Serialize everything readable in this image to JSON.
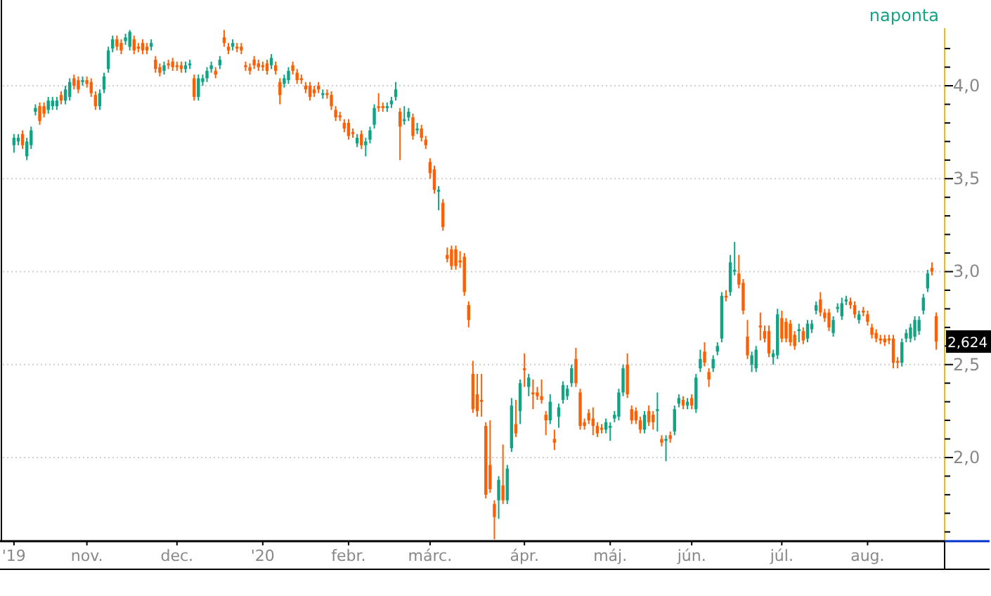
{
  "chart_data": {
    "type": "candlestick",
    "subtitle": "naponta",
    "categories": [
      "'19",
      null,
      null,
      null,
      null,
      null,
      null,
      null,
      null,
      null,
      null,
      null,
      null,
      null,
      null,
      null,
      null,
      "nov.",
      null,
      null,
      null,
      null,
      null,
      null,
      null,
      null,
      null,
      null,
      null,
      null,
      null,
      null,
      null,
      null,
      null,
      null,
      null,
      null,
      "dec.",
      null,
      null,
      null,
      null,
      null,
      null,
      null,
      null,
      null,
      null,
      null,
      null,
      null,
      null,
      null,
      null,
      null,
      null,
      null,
      "'20",
      null,
      null,
      null,
      null,
      null,
      null,
      null,
      null,
      null,
      null,
      null,
      null,
      null,
      null,
      null,
      null,
      null,
      null,
      null,
      "febr.",
      null,
      null,
      null,
      null,
      null,
      null,
      null,
      null,
      null,
      null,
      null,
      null,
      null,
      null,
      null,
      null,
      null,
      null,
      "márc.",
      null,
      null,
      null,
      null,
      null,
      null,
      null,
      null,
      null,
      null,
      null,
      null,
      null,
      null,
      null,
      null,
      null,
      null,
      null,
      null,
      null,
      "ápr.",
      null,
      null,
      null,
      null,
      null,
      null,
      null,
      null,
      null,
      null,
      null,
      null,
      null,
      null,
      null,
      null,
      null,
      null,
      null,
      "máj.",
      null,
      null,
      null,
      null,
      null,
      null,
      null,
      null,
      null,
      null,
      null,
      null,
      null,
      null,
      null,
      null,
      null,
      null,
      "jún.",
      null,
      null,
      null,
      null,
      null,
      null,
      null,
      null,
      null,
      null,
      null,
      null,
      null,
      null,
      null,
      null,
      null,
      null,
      null,
      null,
      "júl.",
      null,
      null,
      null,
      null,
      null,
      null,
      null,
      null,
      null,
      null,
      null,
      null,
      null,
      null,
      null,
      null,
      null,
      null,
      null,
      "aug.",
      null,
      null,
      null,
      null,
      null,
      null,
      null,
      null,
      null,
      null,
      null,
      null,
      null,
      null,
      null,
      null
    ],
    "ohlc": [
      [
        3.68,
        3.74,
        3.64,
        3.72
      ],
      [
        3.7,
        3.74,
        3.68,
        3.72
      ],
      [
        3.74,
        3.76,
        3.66,
        3.68
      ],
      [
        3.62,
        3.72,
        3.6,
        3.7
      ],
      [
        3.68,
        3.78,
        3.66,
        3.76
      ],
      [
        3.86,
        3.9,
        3.84,
        3.88
      ],
      [
        3.89,
        3.91,
        3.79,
        3.81
      ],
      [
        3.89,
        3.91,
        3.83,
        3.85
      ],
      [
        3.87,
        3.94,
        3.85,
        3.92
      ],
      [
        3.89,
        3.94,
        3.87,
        3.92
      ],
      [
        3.89,
        3.94,
        3.87,
        3.92
      ],
      [
        3.95,
        3.97,
        3.9,
        3.92
      ],
      [
        3.92,
        4.0,
        3.9,
        3.98
      ],
      [
        3.94,
        4.04,
        3.92,
        4.02
      ],
      [
        4.04,
        4.06,
        3.98,
        4.0
      ],
      [
        4.03,
        4.05,
        3.96,
        3.98
      ],
      [
        4.02,
        4.05,
        4.0,
        4.03
      ],
      [
        4.03,
        4.05,
        3.99,
        4.01
      ],
      [
        4.02,
        4.04,
        3.94,
        3.96
      ],
      [
        3.95,
        3.97,
        3.87,
        3.89
      ],
      [
        3.89,
        3.98,
        3.87,
        3.96
      ],
      [
        3.98,
        4.07,
        3.96,
        4.05
      ],
      [
        4.09,
        4.21,
        4.07,
        4.19
      ],
      [
        4.2,
        4.27,
        4.18,
        4.25
      ],
      [
        4.25,
        4.27,
        4.19,
        4.21
      ],
      [
        4.23,
        4.25,
        4.17,
        4.19
      ],
      [
        4.24,
        4.28,
        4.22,
        4.26
      ],
      [
        4.21,
        4.3,
        4.19,
        4.29
      ],
      [
        4.25,
        4.27,
        4.17,
        4.19
      ],
      [
        4.21,
        4.23,
        4.18,
        4.2
      ],
      [
        4.23,
        4.25,
        4.17,
        4.19
      ],
      [
        4.21,
        4.23,
        4.17,
        4.19
      ],
      [
        4.21,
        4.25,
        4.19,
        4.23
      ],
      [
        4.14,
        4.16,
        4.07,
        4.09
      ],
      [
        4.1,
        4.12,
        4.05,
        4.07
      ],
      [
        4.08,
        4.13,
        4.06,
        4.11
      ],
      [
        4.12,
        4.14,
        4.09,
        4.11
      ],
      [
        4.13,
        4.15,
        4.08,
        4.1
      ],
      [
        4.11,
        4.13,
        4.08,
        4.1
      ],
      [
        4.11,
        4.13,
        4.07,
        4.09
      ],
      [
        4.09,
        4.13,
        4.07,
        4.11
      ],
      [
        4.11,
        4.14,
        4.09,
        4.12
      ],
      [
        4.04,
        4.06,
        3.92,
        3.94
      ],
      [
        3.94,
        4.06,
        3.92,
        4.04
      ],
      [
        4.02,
        4.06,
        4.0,
        4.04
      ],
      [
        4.04,
        4.1,
        4.02,
        4.08
      ],
      [
        4.09,
        4.13,
        4.07,
        4.11
      ],
      [
        4.08,
        4.1,
        4.04,
        4.06
      ],
      [
        4.11,
        4.16,
        4.09,
        4.14
      ],
      [
        4.26,
        4.3,
        4.21,
        4.23
      ],
      [
        4.21,
        4.23,
        4.17,
        4.19
      ],
      [
        4.21,
        4.25,
        4.19,
        4.23
      ],
      [
        4.21,
        4.23,
        4.18,
        4.2
      ],
      [
        4.21,
        4.23,
        4.17,
        4.19
      ],
      [
        4.11,
        4.13,
        4.08,
        4.1
      ],
      [
        4.1,
        4.12,
        4.06,
        4.08
      ],
      [
        4.14,
        4.16,
        4.09,
        4.11
      ],
      [
        4.12,
        4.14,
        4.08,
        4.1
      ],
      [
        4.11,
        4.13,
        4.08,
        4.1
      ],
      [
        4.12,
        4.14,
        4.06,
        4.08
      ],
      [
        4.11,
        4.17,
        4.09,
        4.15
      ],
      [
        4.11,
        4.13,
        4.06,
        4.08
      ],
      [
        4.02,
        4.04,
        3.9,
        3.95
      ],
      [
        4.01,
        4.06,
        3.99,
        4.04
      ],
      [
        4.03,
        4.1,
        4.01,
        4.08
      ],
      [
        4.11,
        4.13,
        4.06,
        4.08
      ],
      [
        4.07,
        4.09,
        4.01,
        4.03
      ],
      [
        4.04,
        4.06,
        4.01,
        4.03
      ],
      [
        4.0,
        4.02,
        3.96,
        3.98
      ],
      [
        4.0,
        4.02,
        3.92,
        3.94
      ],
      [
        3.98,
        4.0,
        3.94,
        3.96
      ],
      [
        4.0,
        4.02,
        3.96,
        3.98
      ],
      [
        3.95,
        3.98,
        3.93,
        3.96
      ],
      [
        3.96,
        3.98,
        3.93,
        3.95
      ],
      [
        3.95,
        3.97,
        3.87,
        3.89
      ],
      [
        3.87,
        3.89,
        3.81,
        3.83
      ],
      [
        3.84,
        3.86,
        3.81,
        3.83
      ],
      [
        3.8,
        3.82,
        3.75,
        3.77
      ],
      [
        3.8,
        3.82,
        3.71,
        3.73
      ],
      [
        3.75,
        3.77,
        3.72,
        3.74
      ],
      [
        3.69,
        3.74,
        3.67,
        3.72
      ],
      [
        3.74,
        3.76,
        3.66,
        3.68
      ],
      [
        3.68,
        3.72,
        3.62,
        3.7
      ],
      [
        3.71,
        3.78,
        3.69,
        3.76
      ],
      [
        3.79,
        3.9,
        3.77,
        3.88
      ],
      [
        3.89,
        3.96,
        3.86,
        3.88
      ],
      [
        3.89,
        3.91,
        3.86,
        3.88
      ],
      [
        3.88,
        3.91,
        3.86,
        3.89
      ],
      [
        3.9,
        3.94,
        3.88,
        3.92
      ],
      [
        3.94,
        4.02,
        3.92,
        3.98
      ],
      [
        3.86,
        3.88,
        3.6,
        3.78
      ],
      [
        3.81,
        3.89,
        3.79,
        3.82
      ],
      [
        3.83,
        3.88,
        3.81,
        3.86
      ],
      [
        3.83,
        3.85,
        3.71,
        3.73
      ],
      [
        3.76,
        3.8,
        3.74,
        3.77
      ],
      [
        3.77,
        3.79,
        3.7,
        3.72
      ],
      [
        3.71,
        3.73,
        3.66,
        3.68
      ],
      [
        3.59,
        3.61,
        3.5,
        3.53
      ],
      [
        3.55,
        3.57,
        3.42,
        3.44
      ],
      [
        3.43,
        3.46,
        3.33,
        3.44
      ],
      [
        3.37,
        3.39,
        3.22,
        3.24
      ],
      [
        3.09,
        3.13,
        3.05,
        3.07
      ],
      [
        3.12,
        3.14,
        3.01,
        3.03
      ],
      [
        3.12,
        3.14,
        3.01,
        3.03
      ],
      [
        3.06,
        3.11,
        3.02,
        3.05
      ],
      [
        3.08,
        3.1,
        2.87,
        2.89
      ],
      [
        2.82,
        2.84,
        2.7,
        2.74
      ],
      [
        2.45,
        2.52,
        2.24,
        2.26
      ],
      [
        2.34,
        2.45,
        2.22,
        2.25
      ],
      [
        2.31,
        2.45,
        2.22,
        2.3
      ],
      [
        2.17,
        2.19,
        1.78,
        1.8
      ],
      [
        1.96,
        2.2,
        1.81,
        1.83
      ],
      [
        1.75,
        1.77,
        1.56,
        1.68
      ],
      [
        1.77,
        1.9,
        1.67,
        1.88
      ],
      [
        1.85,
        2.07,
        1.75,
        1.77
      ],
      [
        1.77,
        1.96,
        1.75,
        1.94
      ],
      [
        2.05,
        2.32,
        2.03,
        2.28
      ],
      [
        2.18,
        2.31,
        2.11,
        2.13
      ],
      [
        2.25,
        2.42,
        2.18,
        2.4
      ],
      [
        2.48,
        2.56,
        2.38,
        2.47
      ],
      [
        2.38,
        2.45,
        2.33,
        2.43
      ],
      [
        2.35,
        2.42,
        2.26,
        2.34
      ],
      [
        2.35,
        2.38,
        2.31,
        2.33
      ],
      [
        2.33,
        2.42,
        2.29,
        2.31
      ],
      [
        2.23,
        2.25,
        2.12,
        2.2
      ],
      [
        2.2,
        2.34,
        2.18,
        2.3
      ],
      [
        2.1,
        2.15,
        2.04,
        2.08
      ],
      [
        2.22,
        2.29,
        2.16,
        2.27
      ],
      [
        2.31,
        2.41,
        2.29,
        2.39
      ],
      [
        2.33,
        2.39,
        2.31,
        2.37
      ],
      [
        2.4,
        2.5,
        2.38,
        2.48
      ],
      [
        2.53,
        2.59,
        2.38,
        2.4
      ],
      [
        2.35,
        2.37,
        2.15,
        2.17
      ],
      [
        2.19,
        2.21,
        2.15,
        2.17
      ],
      [
        2.24,
        2.26,
        2.18,
        2.2
      ],
      [
        2.21,
        2.27,
        2.12,
        2.17
      ],
      [
        2.17,
        2.19,
        2.11,
        2.13
      ],
      [
        2.16,
        2.18,
        2.13,
        2.15
      ],
      [
        2.15,
        2.21,
        2.13,
        2.19
      ],
      [
        2.16,
        2.19,
        2.09,
        2.17
      ],
      [
        2.21,
        2.25,
        2.19,
        2.23
      ],
      [
        2.22,
        2.37,
        2.2,
        2.35
      ],
      [
        2.35,
        2.5,
        2.33,
        2.48
      ],
      [
        2.5,
        2.56,
        2.32,
        2.34
      ],
      [
        2.26,
        2.28,
        2.18,
        2.2
      ],
      [
        2.25,
        2.27,
        2.18,
        2.2
      ],
      [
        2.2,
        2.22,
        2.13,
        2.15
      ],
      [
        2.15,
        2.25,
        2.13,
        2.23
      ],
      [
        2.25,
        2.28,
        2.17,
        2.19
      ],
      [
        2.23,
        2.25,
        2.15,
        2.19
      ],
      [
        2.25,
        2.35,
        2.14,
        2.26
      ],
      [
        2.1,
        2.12,
        2.06,
        2.08
      ],
      [
        2.09,
        2.12,
        1.98,
        2.1
      ],
      [
        2.12,
        2.14,
        2.08,
        2.1
      ],
      [
        2.14,
        2.28,
        2.12,
        2.26
      ],
      [
        2.29,
        2.34,
        2.27,
        2.32
      ],
      [
        2.31,
        2.33,
        2.26,
        2.28
      ],
      [
        2.28,
        2.32,
        2.26,
        2.3
      ],
      [
        2.32,
        2.34,
        2.26,
        2.28
      ],
      [
        2.26,
        2.45,
        2.24,
        2.43
      ],
      [
        2.48,
        2.58,
        2.46,
        2.53
      ],
      [
        2.57,
        2.62,
        2.49,
        2.51
      ],
      [
        2.46,
        2.48,
        2.38,
        2.42
      ],
      [
        2.48,
        2.55,
        2.46,
        2.53
      ],
      [
        2.57,
        2.62,
        2.55,
        2.6
      ],
      [
        2.64,
        2.89,
        2.62,
        2.87
      ],
      [
        2.87,
        2.9,
        2.84,
        2.86
      ],
      [
        2.89,
        3.09,
        2.87,
        3.05
      ],
      [
        3.0,
        3.16,
        2.98,
        3.01
      ],
      [
        2.99,
        3.09,
        2.91,
        2.93
      ],
      [
        2.94,
        2.96,
        2.77,
        2.79
      ],
      [
        2.65,
        2.74,
        2.53,
        2.55
      ],
      [
        2.5,
        2.57,
        2.46,
        2.55
      ],
      [
        2.48,
        2.6,
        2.46,
        2.58
      ],
      [
        2.71,
        2.78,
        2.63,
        2.7
      ],
      [
        2.68,
        2.71,
        2.62,
        2.64
      ],
      [
        2.68,
        2.71,
        2.54,
        2.56
      ],
      [
        2.54,
        2.58,
        2.5,
        2.56
      ],
      [
        2.55,
        2.8,
        2.53,
        2.77
      ],
      [
        2.75,
        2.79,
        2.62,
        2.64
      ],
      [
        2.73,
        2.75,
        2.62,
        2.64
      ],
      [
        2.72,
        2.74,
        2.6,
        2.62
      ],
      [
        2.66,
        2.68,
        2.58,
        2.6
      ],
      [
        2.68,
        2.72,
        2.62,
        2.69
      ],
      [
        2.68,
        2.7,
        2.61,
        2.63
      ],
      [
        2.64,
        2.74,
        2.62,
        2.72
      ],
      [
        2.69,
        2.74,
        2.67,
        2.72
      ],
      [
        2.79,
        2.84,
        2.77,
        2.82
      ],
      [
        2.85,
        2.89,
        2.76,
        2.78
      ],
      [
        2.78,
        2.8,
        2.73,
        2.75
      ],
      [
        2.78,
        2.8,
        2.68,
        2.7
      ],
      [
        2.67,
        2.76,
        2.65,
        2.74
      ],
      [
        2.8,
        2.83,
        2.78,
        2.81
      ],
      [
        2.76,
        2.86,
        2.74,
        2.83
      ],
      [
        2.84,
        2.87,
        2.82,
        2.85
      ],
      [
        2.84,
        2.86,
        2.8,
        2.82
      ],
      [
        2.82,
        2.84,
        2.75,
        2.77
      ],
      [
        2.74,
        2.79,
        2.72,
        2.77
      ],
      [
        2.79,
        2.81,
        2.76,
        2.78
      ],
      [
        2.77,
        2.79,
        2.71,
        2.73
      ],
      [
        2.7,
        2.72,
        2.64,
        2.66
      ],
      [
        2.67,
        2.69,
        2.62,
        2.64
      ],
      [
        2.64,
        2.66,
        2.61,
        2.63
      ],
      [
        2.64,
        2.66,
        2.6,
        2.62
      ],
      [
        2.64,
        2.66,
        2.61,
        2.63
      ],
      [
        2.64,
        2.66,
        2.48,
        2.51
      ],
      [
        2.52,
        2.54,
        2.48,
        2.51
      ],
      [
        2.51,
        2.64,
        2.49,
        2.62
      ],
      [
        2.64,
        2.69,
        2.62,
        2.67
      ],
      [
        2.64,
        2.72,
        2.62,
        2.7
      ],
      [
        2.65,
        2.76,
        2.63,
        2.74
      ],
      [
        2.68,
        2.76,
        2.66,
        2.74
      ],
      [
        2.79,
        2.88,
        2.77,
        2.86
      ],
      [
        2.91,
        3.01,
        2.89,
        2.99
      ],
      [
        3.02,
        3.05,
        2.98,
        3.0
      ],
      [
        2.76,
        2.78,
        2.58,
        2.624
      ]
    ],
    "colors": [
      "#12a385",
      "#12a385",
      "#ff5f00",
      "#12a385",
      "#12a385",
      "#12a385",
      "#ff5f00",
      "#ff5f00",
      "#12a385",
      "#12a385",
      "#12a385",
      "#ff5f00",
      "#12a385",
      "#12a385",
      "#ff5f00",
      "#ff5f00",
      "#12a385",
      "#ff5f00",
      "#ff5f00",
      "#ff5f00",
      "#12a385",
      "#12a385",
      "#12a385",
      "#12a385",
      "#ff5f00",
      "#ff5f00",
      "#12a385",
      "#12a385",
      "#ff5f00",
      "#ff5f00",
      "#ff5f00",
      "#ff5f00",
      "#12a385",
      "#ff5f00",
      "#ff5f00",
      "#12a385",
      "#ff5f00",
      "#ff5f00",
      "#ff5f00",
      "#ff5f00",
      "#12a385",
      "#12a385",
      "#ff5f00",
      "#12a385",
      "#12a385",
      "#12a385",
      "#12a385",
      "#ff5f00",
      "#12a385",
      "#ff5f00",
      "#ff5f00",
      "#12a385",
      "#ff5f00",
      "#ff5f00",
      "#ff5f00",
      "#ff5f00",
      "#ff5f00",
      "#ff5f00",
      "#ff5f00",
      "#ff5f00",
      "#12a385",
      "#ff5f00",
      "#ff5f00",
      "#12a385",
      "#12a385",
      "#ff5f00",
      "#ff5f00",
      "#ff5f00",
      "#ff5f00",
      "#ff5f00",
      "#ff5f00",
      "#ff5f00",
      "#12a385",
      "#ff5f00",
      "#ff5f00",
      "#ff5f00",
      "#ff5f00",
      "#ff5f00",
      "#ff5f00",
      "#ff5f00",
      "#12a385",
      "#ff5f00",
      "#12a385",
      "#12a385",
      "#12a385",
      "#ff5f00",
      "#ff5f00",
      "#12a385",
      "#12a385",
      "#12a385",
      "#ff5f00",
      "#12a385",
      "#12a385",
      "#ff5f00",
      "#12a385",
      "#ff5f00",
      "#ff5f00",
      "#ff5f00",
      "#ff5f00",
      "#12a385",
      "#ff5f00",
      "#ff5f00",
      "#ff5f00",
      "#ff5f00",
      "#ff5f00",
      "#ff5f00",
      "#ff5f00",
      "#ff5f00",
      "#ff5f00",
      "#ff5f00",
      "#ff5f00",
      "#ff5f00",
      "#ff5f00",
      "#12a385",
      "#ff5f00",
      "#12a385",
      "#12a385",
      "#ff5f00",
      "#12a385",
      "#ff5f00",
      "#12a385",
      "#ff5f00",
      "#ff5f00",
      "#ff5f00",
      "#ff5f00",
      "#12a385",
      "#ff5f00",
      "#12a385",
      "#12a385",
      "#12a385",
      "#12a385",
      "#ff5f00",
      "#ff5f00",
      "#ff5f00",
      "#ff5f00",
      "#ff5f00",
      "#ff5f00",
      "#ff5f00",
      "#12a385",
      "#12a385",
      "#12a385",
      "#12a385",
      "#12a385",
      "#ff5f00",
      "#ff5f00",
      "#ff5f00",
      "#ff5f00",
      "#12a385",
      "#ff5f00",
      "#ff5f00",
      "#12a385",
      "#ff5f00",
      "#12a385",
      "#ff5f00",
      "#12a385",
      "#12a385",
      "#ff5f00",
      "#12a385",
      "#ff5f00",
      "#12a385",
      "#12a385",
      "#ff5f00",
      "#ff5f00",
      "#12a385",
      "#12a385",
      "#12a385",
      "#ff5f00",
      "#12a385",
      "#12a385",
      "#ff5f00",
      "#ff5f00",
      "#ff5f00",
      "#12a385",
      "#12a385",
      "#ff5f00",
      "#ff5f00",
      "#ff5f00",
      "#12a385",
      "#12a385",
      "#ff5f00",
      "#ff5f00",
      "#ff5f00",
      "#ff5f00",
      "#12a385",
      "#ff5f00",
      "#12a385",
      "#12a385",
      "#12a385",
      "#ff5f00",
      "#ff5f00",
      "#ff5f00",
      "#12a385",
      "#12a385",
      "#12a385",
      "#12a385",
      "#ff5f00",
      "#ff5f00",
      "#12a385",
      "#ff5f00",
      "#ff5f00",
      "#ff5f00",
      "#ff5f00",
      "#ff5f00",
      "#ff5f00",
      "#ff5f00",
      "#ff5f00",
      "#ff5f00",
      "#12a385",
      "#12a385",
      "#12a385",
      "#12a385",
      "#12a385",
      "#12a385",
      "#12a385",
      "#ff5f00",
      "#ff5f00"
    ],
    "ylim": [
      1.55,
      4.31
    ],
    "yticks": [
      {
        "value": 1.6,
        "label": null
      },
      {
        "value": 1.7,
        "label": null
      },
      {
        "value": 1.8,
        "label": null
      },
      {
        "value": 1.9,
        "label": null
      },
      {
        "value": 2,
        "label": "2,0"
      },
      {
        "value": 2.1,
        "label": null
      },
      {
        "value": 2.2,
        "label": null
      },
      {
        "value": 2.3,
        "label": null
      },
      {
        "value": 2.4,
        "label": null
      },
      {
        "value": 2.5,
        "label": "2,5"
      },
      {
        "value": 2.6,
        "label": null
      },
      {
        "value": 2.7,
        "label": null
      },
      {
        "value": 2.8,
        "label": null
      },
      {
        "value": 2.9,
        "label": null
      },
      {
        "value": 3,
        "label": "3,0"
      },
      {
        "value": 3.1,
        "label": null
      },
      {
        "value": 3.2,
        "label": null
      },
      {
        "value": 3.3,
        "label": null
      },
      {
        "value": 3.4,
        "label": null
      },
      {
        "value": 3.5,
        "label": "3,5"
      },
      {
        "value": 3.6,
        "label": null
      },
      {
        "value": 3.7,
        "label": null
      },
      {
        "value": 3.8,
        "label": null
      },
      {
        "value": 3.9,
        "label": null
      },
      {
        "value": 4,
        "label": "4,0"
      },
      {
        "value": 4.1,
        "label": null
      },
      {
        "value": 4.2,
        "label": null
      }
    ],
    "annotations": [
      {
        "text": "2,624",
        "y": 2.624
      }
    ],
    "grid": "y"
  }
}
